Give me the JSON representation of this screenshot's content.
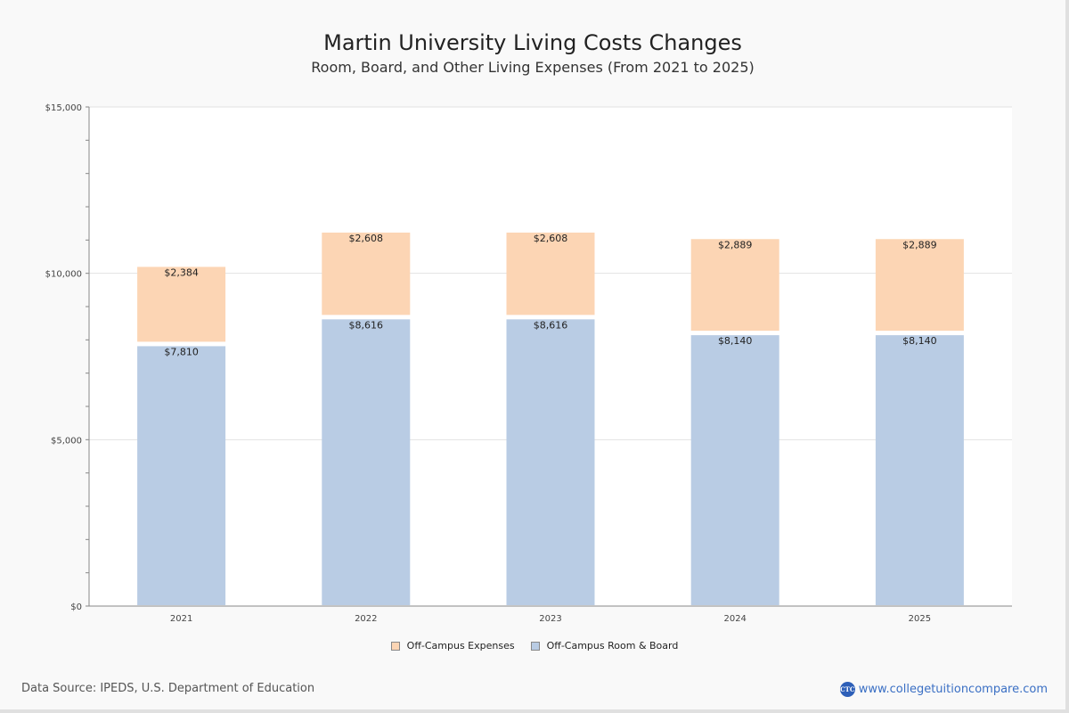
{
  "chart_data": {
    "type": "bar",
    "stacked": true,
    "title": "Martin University Living Costs Changes",
    "subtitle": "Room, Board, and Other Living Expenses (From 2021 to 2025)",
    "xlabel": "",
    "ylabel": "",
    "categories": [
      "2021",
      "2022",
      "2023",
      "2024",
      "2025"
    ],
    "series": [
      {
        "name": "Off-Campus Room & Board",
        "color": "#b9cce4",
        "values": [
          7810,
          8616,
          8616,
          8140,
          8140
        ],
        "labels": [
          "$7,810",
          "$8,616",
          "$8,616",
          "$8,140",
          "$8,140"
        ]
      },
      {
        "name": "Off-Campus Expenses",
        "color": "#fcd5b4",
        "values": [
          2384,
          2608,
          2608,
          2889,
          2889
        ],
        "labels": [
          "$2,384",
          "$2,608",
          "$2,608",
          "$2,889",
          "$2,889"
        ]
      }
    ],
    "ylim": [
      0,
      15000
    ],
    "yticks": [
      0,
      5000,
      10000,
      15000
    ],
    "ytick_labels": [
      "$0",
      "$5,000",
      "$10,000",
      "$15,000"
    ],
    "y_minor_step": 1000,
    "grid": true,
    "legend_position": "bottom-center",
    "legend": [
      "Off-Campus Expenses",
      "Off-Campus Room & Board"
    ]
  },
  "legend": [
    {
      "label": "Off-Campus Expenses",
      "color": "#fcd5b4"
    },
    {
      "label": "Off-Campus Room & Board",
      "color": "#b9cce4"
    }
  ],
  "footer": {
    "source": "Data Source: IPEDS, U.S. Department of Education",
    "brand_logo": "CTC",
    "brand_url": "www.collegetuitioncompare.com"
  }
}
